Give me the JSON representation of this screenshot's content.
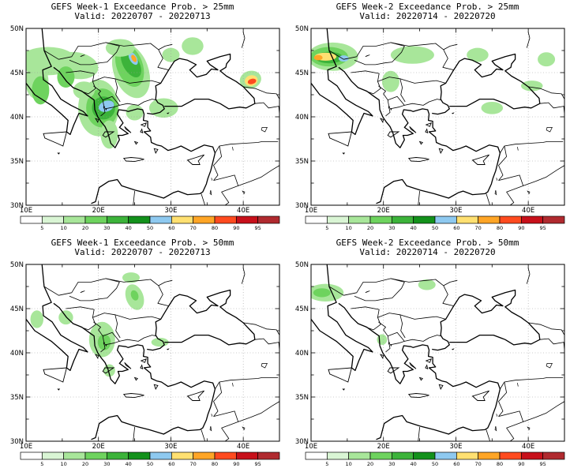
{
  "panels": [
    {
      "id": "w1-25",
      "title": "GEFS Week-1 Exceedance Prob. > 25mm",
      "valid": "Valid: 20220707 - 20220713"
    },
    {
      "id": "w2-25",
      "title": "GEFS Week-2 Exceedance Prob. > 25mm",
      "valid": "Valid: 20220714 - 20220720"
    },
    {
      "id": "w1-50",
      "title": "GEFS Week-1 Exceedance Prob. > 50mm",
      "valid": "Valid: 20220707 - 20220713"
    },
    {
      "id": "w2-50",
      "title": "GEFS Week-2 Exceedance Prob. > 50mm",
      "valid": "Valid: 20220714 - 20220720"
    }
  ],
  "axes": {
    "lat_labels": [
      "50N",
      "45N",
      "40N",
      "35N",
      "30N"
    ],
    "lon_labels": [
      "10E",
      "20E",
      "30E",
      "40E"
    ]
  },
  "colorbar": {
    "labels": [
      "5",
      "10",
      "20",
      "30",
      "40",
      "50",
      "60",
      "70",
      "80",
      "90",
      "95"
    ],
    "colors": [
      "#ffffff",
      "#d9f5d4",
      "#a8e69a",
      "#6ed35e",
      "#3cb33a",
      "#13911b",
      "#8ec9f0",
      "#ffe071",
      "#ffa526",
      "#ff4b1f",
      "#c7101a",
      "#b02a2f"
    ]
  }
}
